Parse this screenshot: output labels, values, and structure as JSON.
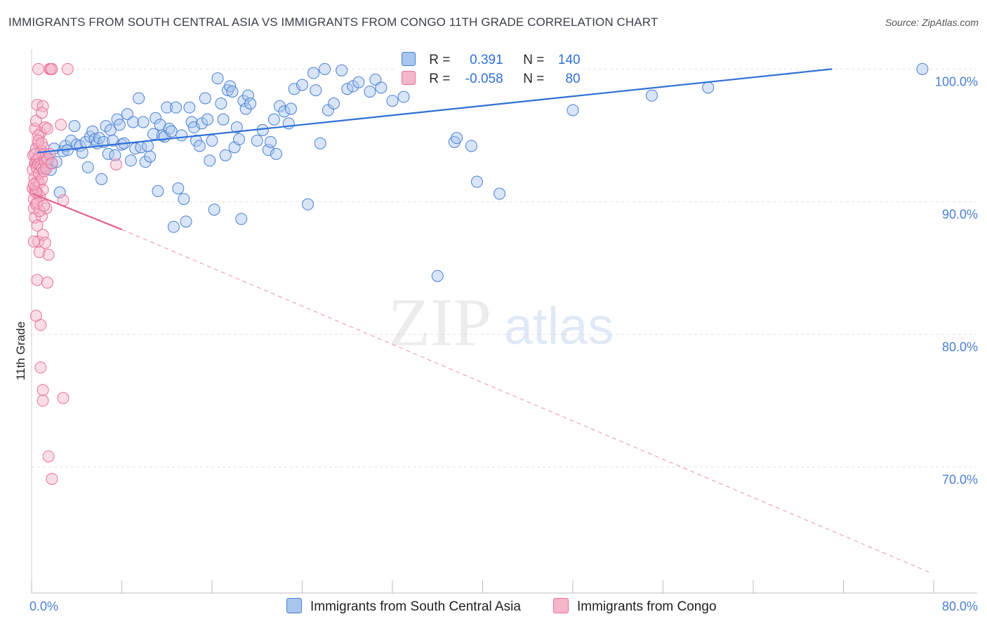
{
  "title": "IMMIGRANTS FROM SOUTH CENTRAL ASIA VS IMMIGRANTS FROM CONGO 11TH GRADE CORRELATION CHART",
  "source": "Source: ZipAtlas.com",
  "watermark": {
    "zip": "ZIP",
    "atlas": "atlas"
  },
  "colors": {
    "blue": "#4a7fd4",
    "blue_fill": "#a9c6ee",
    "pink": "#e8709a",
    "pink_fill": "#f5b6ca",
    "grid": "#dddddd"
  },
  "legend": {
    "rows": [
      {
        "r_label": "R =",
        "r_value": "0.391",
        "n_label": "N =",
        "n_value": "140"
      },
      {
        "r_label": "R =",
        "r_value": "-0.058",
        "n_label": "N =",
        "n_value": "80"
      }
    ]
  },
  "bottom_legend": {
    "series_a": "Immigrants from South Central Asia",
    "series_b": "Immigrants from Congo"
  },
  "chart_data": {
    "type": "scatter",
    "title": "IMMIGRANTS FROM SOUTH CENTRAL ASIA VS IMMIGRANTS FROM CONGO 11TH GRADE CORRELATION CHART",
    "xlabel": "",
    "ylabel": "11th Grade",
    "xlim": [
      0,
      80
    ],
    "ylim": [
      60.5,
      101.5
    ],
    "x_tick_labels": [
      "0.0%",
      "80.0%"
    ],
    "y_ticks": [
      70,
      80,
      90,
      100
    ],
    "y_tick_labels": [
      "70.0%",
      "80.0%",
      "90.0%",
      "100.0%"
    ],
    "grid": true,
    "series": [
      {
        "name": "Immigrants from South Central Asia",
        "color": "#4a7fd4",
        "trend": {
          "x": [
            0.5,
            71
          ],
          "y": [
            93.7,
            100.0
          ]
        },
        "points": [
          [
            0.5,
            93.0
          ],
          [
            0.6,
            93.4
          ],
          [
            0.7,
            92.8
          ],
          [
            0.8,
            93.1
          ],
          [
            0.9,
            92.6
          ],
          [
            1.0,
            93.3
          ],
          [
            1.1,
            92.9
          ],
          [
            1.2,
            93.6
          ],
          [
            1.3,
            92.7
          ],
          [
            1.5,
            93.2
          ],
          [
            1.7,
            92.4
          ],
          [
            1.8,
            92.9
          ],
          [
            2.0,
            94.0
          ],
          [
            2.2,
            93.0
          ],
          [
            2.5,
            90.7
          ],
          [
            2.8,
            93.8
          ],
          [
            3.0,
            94.2
          ],
          [
            3.2,
            93.9
          ],
          [
            3.5,
            94.6
          ],
          [
            3.8,
            95.7
          ],
          [
            4.0,
            94.3
          ],
          [
            4.3,
            94.2
          ],
          [
            4.5,
            93.7
          ],
          [
            4.8,
            94.5
          ],
          [
            5.0,
            92.6
          ],
          [
            5.2,
            94.9
          ],
          [
            5.4,
            95.3
          ],
          [
            5.6,
            94.7
          ],
          [
            5.8,
            94.4
          ],
          [
            6.0,
            94.8
          ],
          [
            6.2,
            91.7
          ],
          [
            6.4,
            94.5
          ],
          [
            6.6,
            95.7
          ],
          [
            6.8,
            93.6
          ],
          [
            7.0,
            95.4
          ],
          [
            7.2,
            94.6
          ],
          [
            7.4,
            93.5
          ],
          [
            7.6,
            96.2
          ],
          [
            7.8,
            95.8
          ],
          [
            8.0,
            94.3
          ],
          [
            8.2,
            94.4
          ],
          [
            8.5,
            96.6
          ],
          [
            8.8,
            93.1
          ],
          [
            9.0,
            96.0
          ],
          [
            9.2,
            94.0
          ],
          [
            9.5,
            97.8
          ],
          [
            9.7,
            94.1
          ],
          [
            9.9,
            96.0
          ],
          [
            10.1,
            93.0
          ],
          [
            10.3,
            94.2
          ],
          [
            10.5,
            93.4
          ],
          [
            10.8,
            95.1
          ],
          [
            11.0,
            96.3
          ],
          [
            11.2,
            90.8
          ],
          [
            11.4,
            95.8
          ],
          [
            11.6,
            95.0
          ],
          [
            11.8,
            94.9
          ],
          [
            12.0,
            97.1
          ],
          [
            12.2,
            95.5
          ],
          [
            12.4,
            95.3
          ],
          [
            12.6,
            88.1
          ],
          [
            12.8,
            97.1
          ],
          [
            13.0,
            91.0
          ],
          [
            13.3,
            95.0
          ],
          [
            13.5,
            90.2
          ],
          [
            13.7,
            88.5
          ],
          [
            14.0,
            97.1
          ],
          [
            14.2,
            96.0
          ],
          [
            14.4,
            95.6
          ],
          [
            14.6,
            94.6
          ],
          [
            14.9,
            94.2
          ],
          [
            15.1,
            95.9
          ],
          [
            15.4,
            97.8
          ],
          [
            15.6,
            96.2
          ],
          [
            15.8,
            93.1
          ],
          [
            16.0,
            94.6
          ],
          [
            16.2,
            89.4
          ],
          [
            16.5,
            99.3
          ],
          [
            16.8,
            97.4
          ],
          [
            17.0,
            96.2
          ],
          [
            17.2,
            93.5
          ],
          [
            17.4,
            98.4
          ],
          [
            17.6,
            98.7
          ],
          [
            17.8,
            98.3
          ],
          [
            18.0,
            94.1
          ],
          [
            18.2,
            95.6
          ],
          [
            18.4,
            94.7
          ],
          [
            18.6,
            88.7
          ],
          [
            18.8,
            97.6
          ],
          [
            19.0,
            97.0
          ],
          [
            19.2,
            98.0
          ],
          [
            19.4,
            97.4
          ],
          [
            20.0,
            94.6
          ],
          [
            20.5,
            95.4
          ],
          [
            21.0,
            93.9
          ],
          [
            21.2,
            94.5
          ],
          [
            21.5,
            96.2
          ],
          [
            21.7,
            93.6
          ],
          [
            22.0,
            97.2
          ],
          [
            22.4,
            96.8
          ],
          [
            22.8,
            95.9
          ],
          [
            23.0,
            97.0
          ],
          [
            23.3,
            98.5
          ],
          [
            24.0,
            98.8
          ],
          [
            24.5,
            89.8
          ],
          [
            25.0,
            99.7
          ],
          [
            25.2,
            98.4
          ],
          [
            25.6,
            94.4
          ],
          [
            26.0,
            100.0
          ],
          [
            26.3,
            96.9
          ],
          [
            26.8,
            97.4
          ],
          [
            27.5,
            99.9
          ],
          [
            28.0,
            98.5
          ],
          [
            28.5,
            98.7
          ],
          [
            29.0,
            99.0
          ],
          [
            30.0,
            98.3
          ],
          [
            30.5,
            99.2
          ],
          [
            31.0,
            98.6
          ],
          [
            32.0,
            97.6
          ],
          [
            33.0,
            97.9
          ],
          [
            36.0,
            84.4
          ],
          [
            37.5,
            94.5
          ],
          [
            37.7,
            94.8
          ],
          [
            39.0,
            94.2
          ],
          [
            39.5,
            91.5
          ],
          [
            41.5,
            90.6
          ],
          [
            48.0,
            96.9
          ],
          [
            55.0,
            98.0
          ],
          [
            60.0,
            98.6
          ],
          [
            79.0,
            100.0
          ]
        ]
      },
      {
        "name": "Immigrants from Congo",
        "color": "#e8709a",
        "trend": {
          "x": [
            0.1,
            8.0
          ],
          "y": [
            90.6,
            87.9
          ],
          "dashed_to": {
            "x": 79.8,
            "y": 62.0
          }
        },
        "points": [
          [
            0.1,
            92.4
          ],
          [
            0.1,
            91.0
          ],
          [
            0.15,
            93.5
          ],
          [
            0.2,
            90.2
          ],
          [
            0.2,
            89.5
          ],
          [
            0.25,
            91.8
          ],
          [
            0.3,
            92.9
          ],
          [
            0.3,
            90.8
          ],
          [
            0.35,
            93.0
          ],
          [
            0.35,
            91.1
          ],
          [
            0.4,
            94.0
          ],
          [
            0.4,
            89.8
          ],
          [
            0.45,
            92.6
          ],
          [
            0.5,
            91.5
          ],
          [
            0.5,
            93.2
          ],
          [
            0.55,
            90.6
          ],
          [
            0.6,
            92.8
          ],
          [
            0.6,
            94.4
          ],
          [
            0.65,
            92.1
          ],
          [
            0.7,
            91.4
          ],
          [
            0.7,
            93.3
          ],
          [
            0.75,
            90.4
          ],
          [
            0.8,
            95.2
          ],
          [
            0.8,
            92.7
          ],
          [
            0.85,
            93.8
          ],
          [
            0.9,
            91.7
          ],
          [
            0.95,
            92.5
          ],
          [
            1.0,
            93.5
          ],
          [
            1.0,
            90.9
          ],
          [
            1.05,
            94.1
          ],
          [
            1.1,
            92.3
          ],
          [
            1.2,
            93.0
          ],
          [
            1.3,
            92.5
          ],
          [
            1.4,
            93.2
          ],
          [
            0.3,
            95.5
          ],
          [
            0.4,
            96.1
          ],
          [
            0.5,
            97.3
          ],
          [
            0.6,
            95.0
          ],
          [
            0.6,
            87.0
          ],
          [
            0.7,
            86.2
          ],
          [
            0.5,
            84.1
          ],
          [
            0.4,
            81.4
          ],
          [
            0.8,
            80.7
          ],
          [
            0.8,
            77.5
          ],
          [
            1.0,
            75.8
          ],
          [
            1.0,
            75.0
          ],
          [
            2.8,
            75.2
          ],
          [
            1.5,
            70.8
          ],
          [
            1.8,
            69.1
          ],
          [
            1.0,
            97.2
          ],
          [
            0.9,
            96.7
          ],
          [
            1.2,
            95.6
          ],
          [
            1.4,
            95.5
          ],
          [
            1.6,
            100.0
          ],
          [
            1.7,
            100.0
          ],
          [
            1.8,
            100.0
          ],
          [
            0.6,
            100.0
          ],
          [
            3.2,
            100.0
          ],
          [
            2.6,
            95.8
          ],
          [
            0.5,
            89.9
          ],
          [
            0.3,
            88.8
          ],
          [
            0.9,
            88.9
          ],
          [
            1.3,
            89.5
          ],
          [
            2.8,
            90.1
          ],
          [
            1.0,
            87.5
          ],
          [
            1.2,
            86.9
          ],
          [
            1.5,
            86.0
          ],
          [
            1.4,
            83.9
          ],
          [
            0.7,
            89.3
          ],
          [
            0.2,
            87.0
          ],
          [
            0.3,
            93.6
          ],
          [
            0.6,
            94.6
          ],
          [
            0.9,
            94.4
          ],
          [
            1.6,
            93.6
          ],
          [
            1.8,
            92.9
          ],
          [
            7.5,
            92.8
          ],
          [
            0.5,
            88.2
          ],
          [
            1.1,
            89.7
          ],
          [
            0.4,
            90.7
          ],
          [
            0.2,
            91.3
          ]
        ]
      }
    ]
  }
}
